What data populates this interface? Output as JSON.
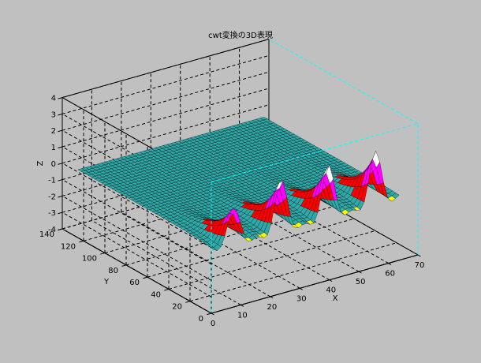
{
  "chart_data": {
    "type": "surface",
    "title": "cwt変換の3D表現",
    "xlabel": "X",
    "ylabel": "Y",
    "zlabel": "Z",
    "xlim": [
      0,
      70
    ],
    "ylim": [
      0,
      140
    ],
    "zlim": [
      -4,
      4
    ],
    "x_ticks": [
      0,
      10,
      20,
      30,
      40,
      50,
      60,
      70
    ],
    "y_ticks": [
      0,
      20,
      40,
      60,
      80,
      100,
      120,
      140
    ],
    "z_ticks": [
      -4,
      -3,
      -2,
      -1,
      0,
      1,
      2,
      3,
      4
    ],
    "grid": true,
    "surface_extent": {
      "x": [
        1,
        64
      ],
      "y": [
        1,
        128
      ]
    },
    "peaks_near_y1": [
      {
        "x": 8,
        "max_z": 2.0,
        "min_z": -3.3
      },
      {
        "x": 24,
        "max_z": 2.9,
        "min_z": -3.5
      },
      {
        "x": 40,
        "max_z": 3.0,
        "min_z": -3.6
      },
      {
        "x": 56,
        "max_z": 3.0,
        "min_z": -3.2
      }
    ],
    "colors": {
      "background": "#c0c0c0",
      "grid": "#000000",
      "front_axis_edges": "#00ffff",
      "mesh_edges": "#000000"
    },
    "colormap": [
      "#0000ff",
      "#00ffff",
      "#00ff00",
      "#ffff00",
      "#ff0000",
      "#ff00ff",
      "#ffffff"
    ]
  }
}
